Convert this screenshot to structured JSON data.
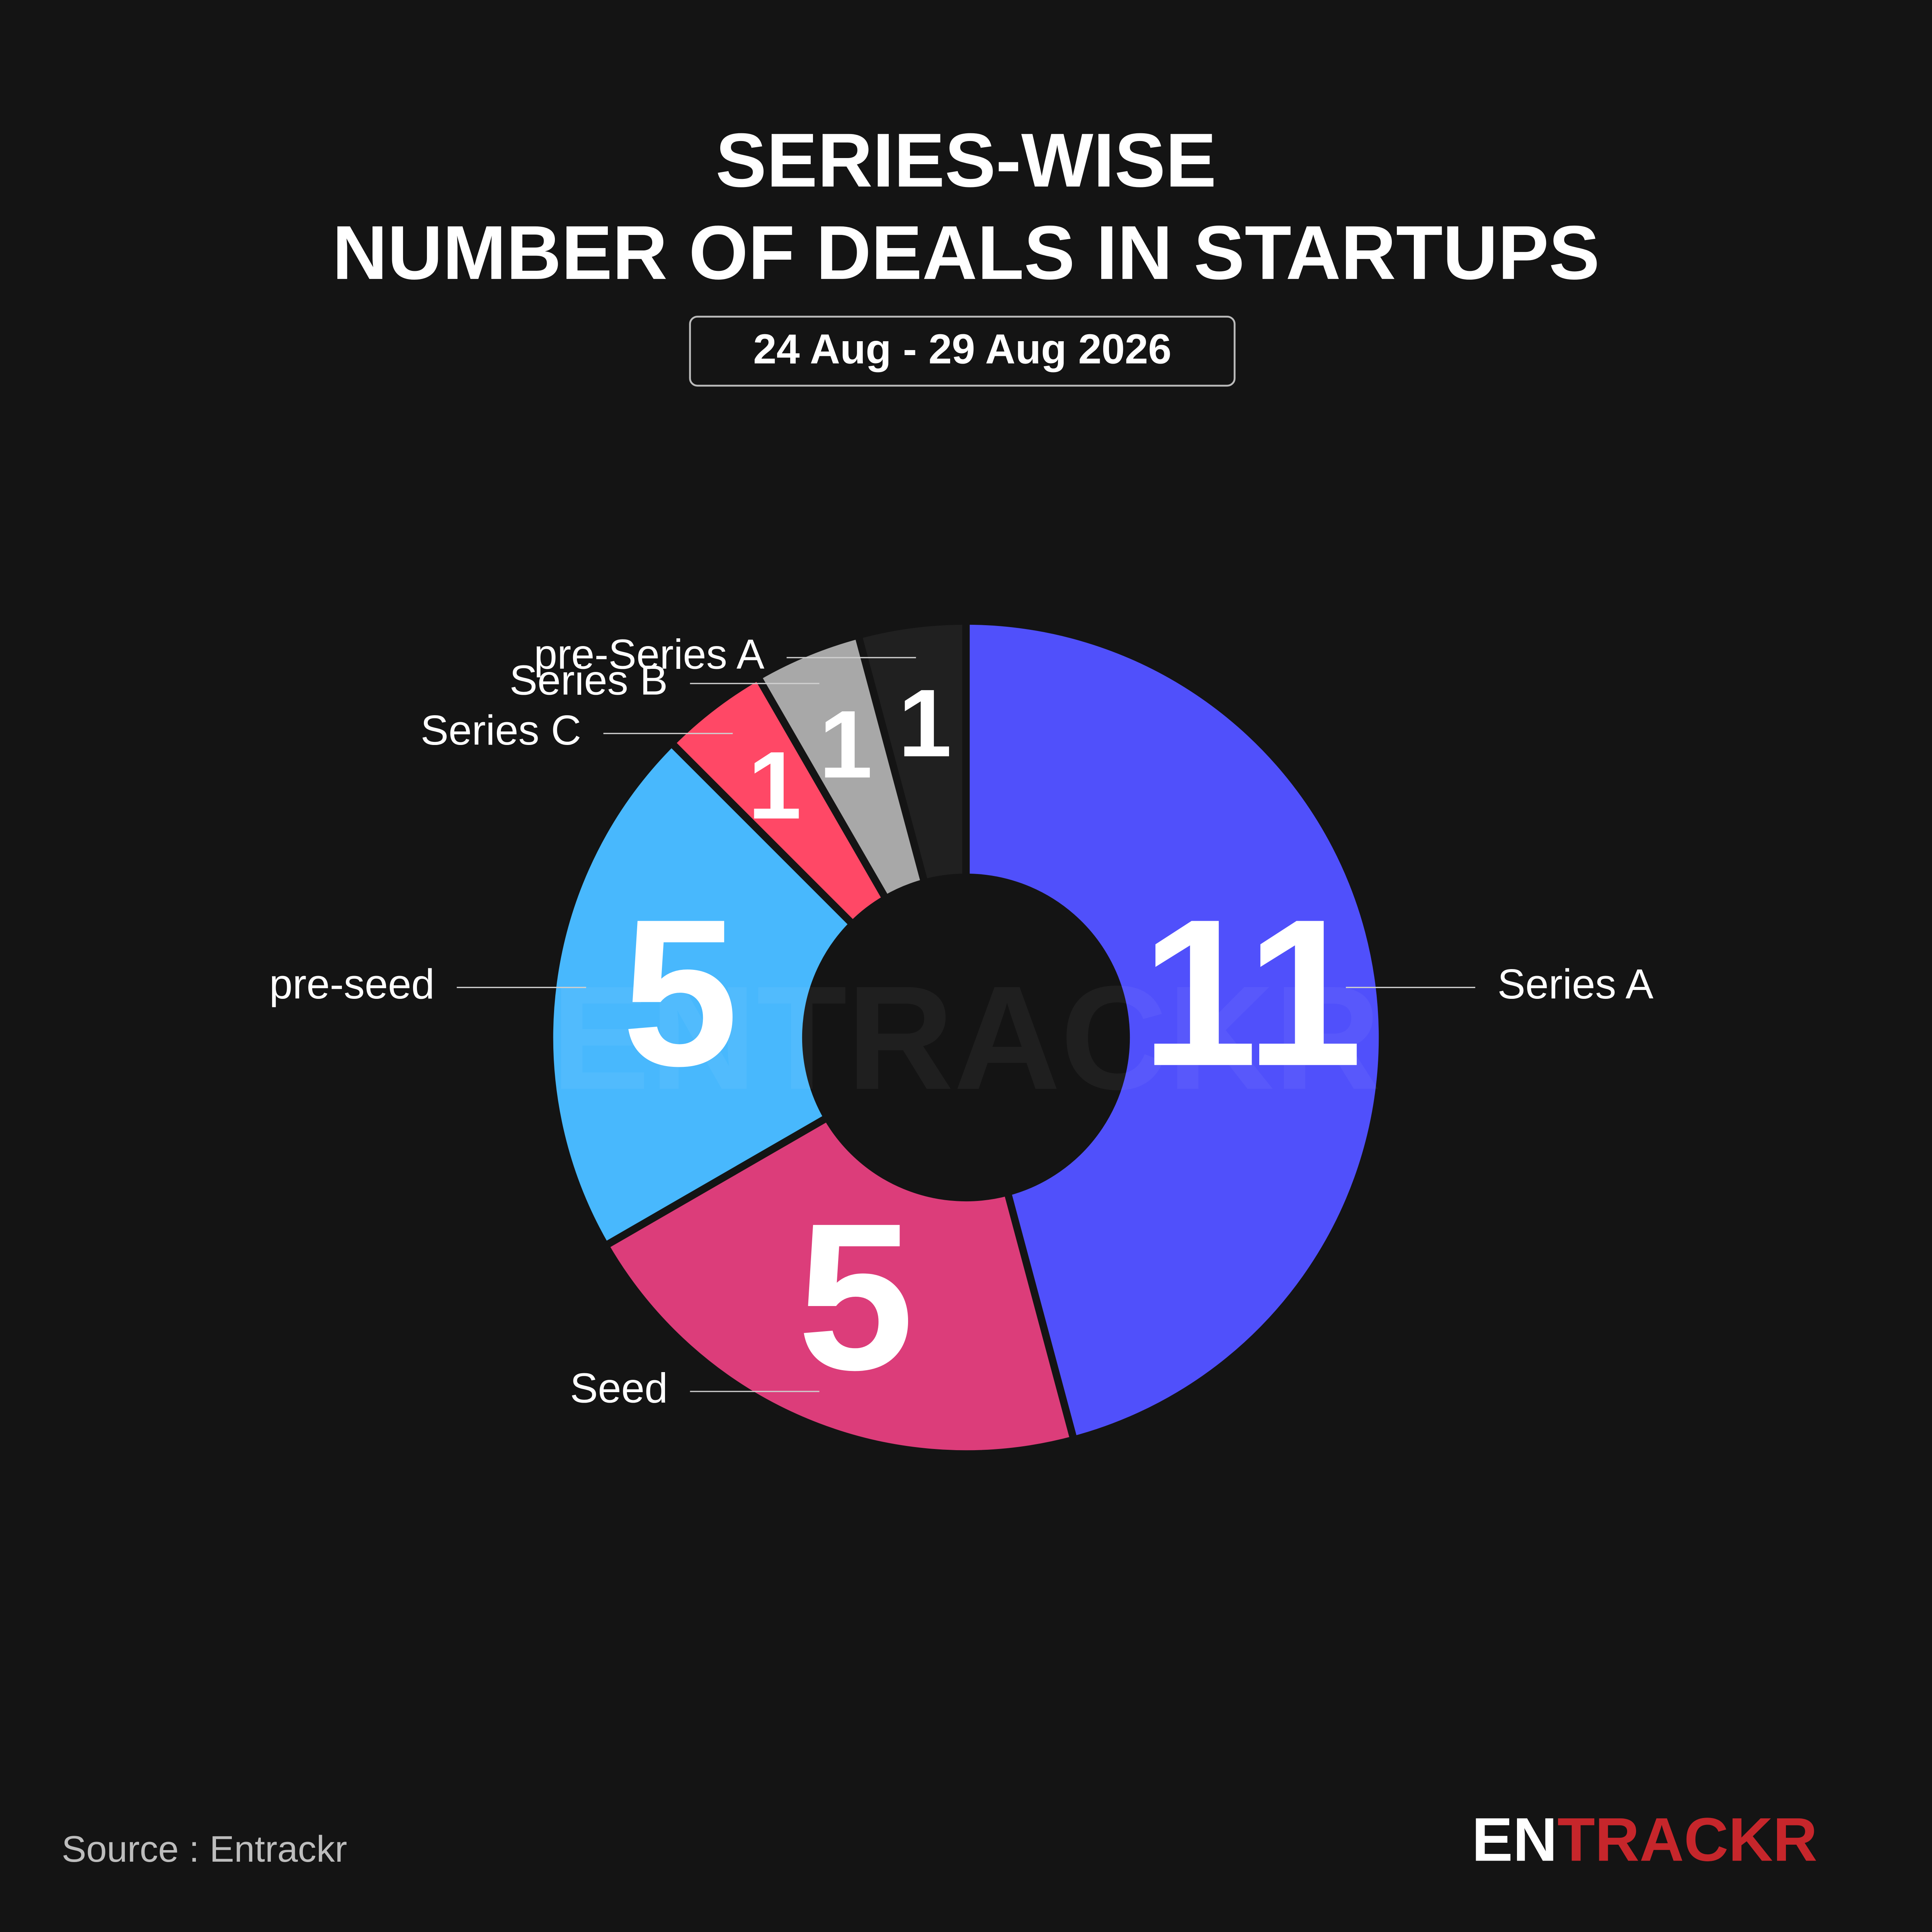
{
  "chart_data": {
    "type": "donut",
    "title": [
      "SERIES-WISE",
      "NUMBER OF DEALS IN STARTUPS"
    ],
    "subtitle": "24 Aug - 29 Aug 2026",
    "categories": [
      "Series A",
      "Seed",
      "pre-seed",
      "Series C",
      "Series B",
      "pre-Series A"
    ],
    "values": [
      11,
      5,
      5,
      1,
      1,
      1
    ],
    "colors": [
      "#5050fb",
      "#dc3d7a",
      "#48b8fd",
      "#ff4866",
      "#a8a8a8",
      "#202020"
    ],
    "source": "Source : Entrackr",
    "watermark": "ENTRACKR",
    "logo": [
      "EN",
      "TRACKR"
    ]
  }
}
